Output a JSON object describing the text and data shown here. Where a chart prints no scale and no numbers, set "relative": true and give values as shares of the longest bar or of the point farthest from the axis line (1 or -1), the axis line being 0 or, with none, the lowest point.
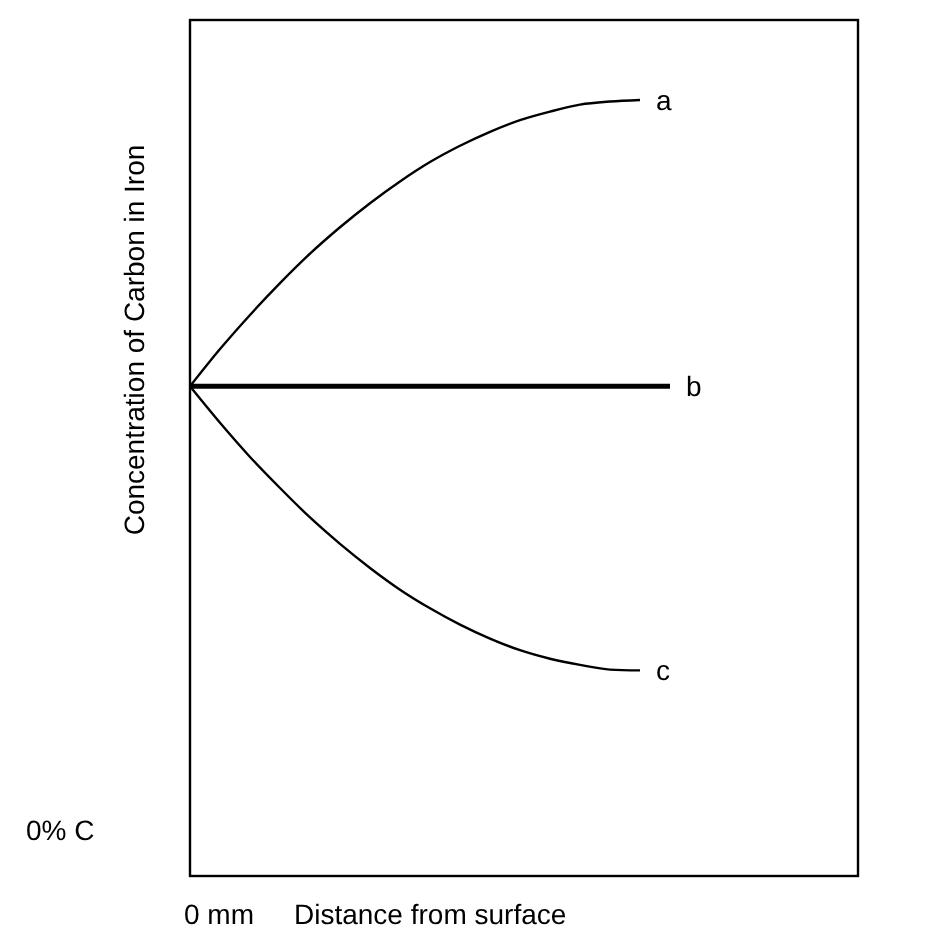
{
  "chart_data": {
    "type": "line",
    "relative": true,
    "xlabel": "Distance from surface",
    "ylabel": "Concentration of Carbon in Iron",
    "annotations": [
      "0% C",
      "0 mm"
    ],
    "legend": false,
    "grid": false,
    "marker": "none",
    "line_style": "solid",
    "categories": [
      null,
      null,
      null,
      null,
      null,
      null,
      null,
      null,
      null,
      null,
      null,
      null,
      null,
      null,
      null,
      null,
      null,
      null,
      null,
      null,
      null,
      null,
      null
    ],
    "series": [
      {
        "name": "a",
        "color": "#000000",
        "values": [
          0.631,
          0.679,
          0.723,
          0.764,
          0.802,
          0.836,
          0.867,
          0.895,
          0.92,
          0.941,
          0.959,
          0.974,
          0.985,
          0.994,
          0.998,
          1.0,
          null,
          null,
          null,
          null,
          null,
          null,
          null
        ]
      },
      {
        "name": "b",
        "color": "#000000",
        "values": [
          0.631,
          0.631,
          0.631,
          0.631,
          0.631,
          0.631,
          0.631,
          0.631,
          0.631,
          0.631,
          0.631,
          0.631,
          0.631,
          0.631,
          0.631,
          0.631,
          0.631,
          null,
          null,
          null,
          null,
          null,
          null
        ]
      },
      {
        "name": "c",
        "color": "#000000",
        "values": [
          0.631,
          0.584,
          0.54,
          0.5,
          0.462,
          0.428,
          0.397,
          0.369,
          0.345,
          0.324,
          0.306,
          0.291,
          0.28,
          0.272,
          0.266,
          0.265,
          null,
          null,
          null,
          null,
          null,
          null,
          null
        ]
      }
    ]
  }
}
